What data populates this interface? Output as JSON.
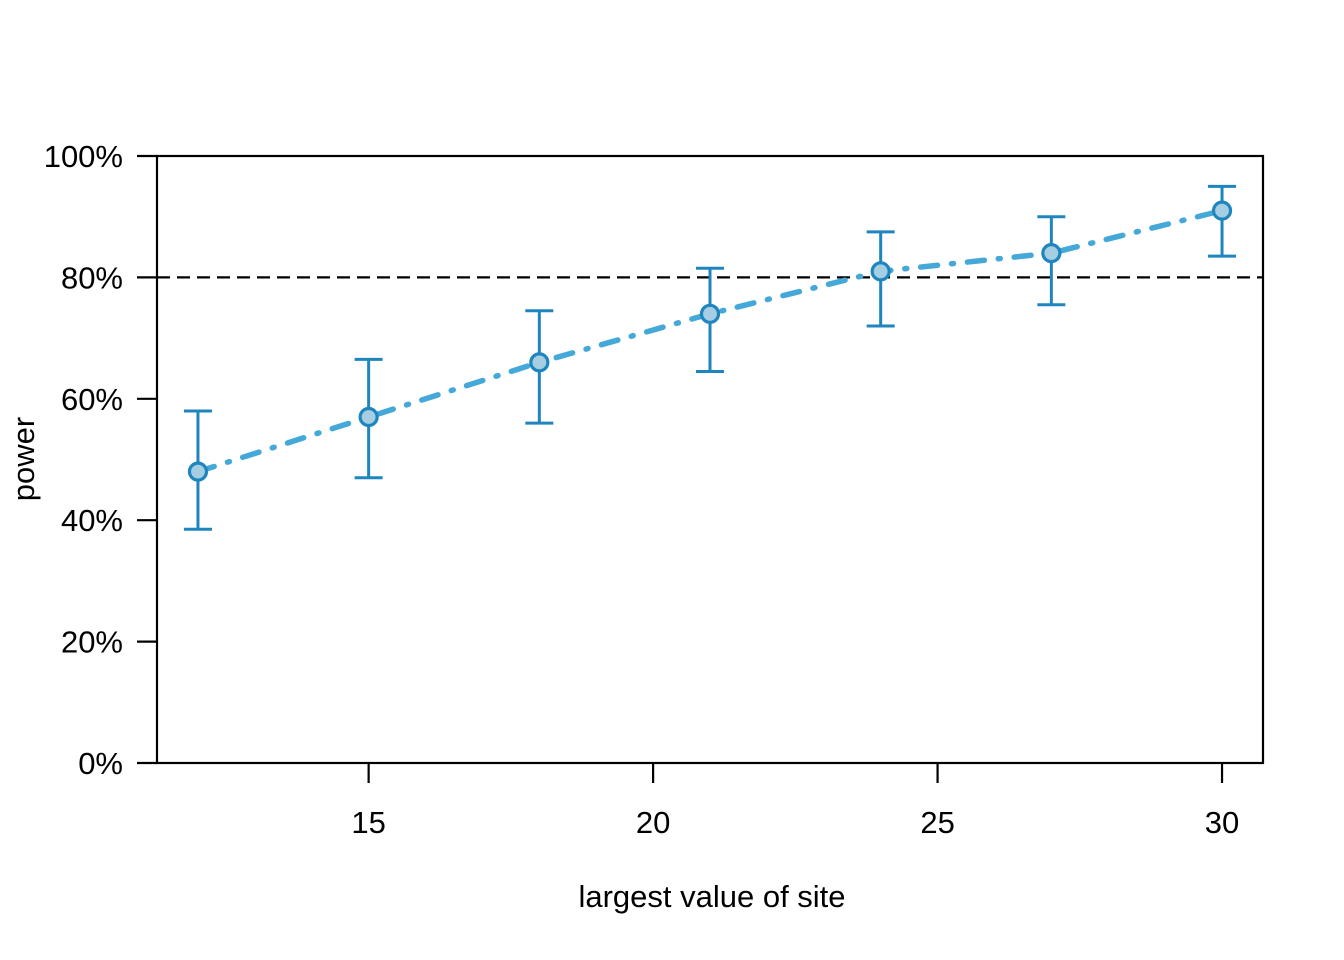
{
  "chart_data": {
    "type": "line",
    "title": "",
    "xlabel": "largest value of site",
    "ylabel": "power",
    "x": [
      12,
      15,
      18,
      21,
      24,
      27,
      30
    ],
    "series": [
      {
        "name": "power",
        "values": [
          48,
          57,
          66,
          74,
          81,
          84,
          91
        ],
        "ci_lower": [
          38.5,
          47,
          56,
          64.5,
          72,
          75.5,
          83.5
        ],
        "ci_upper": [
          58,
          66.5,
          74.5,
          81.5,
          87.5,
          90,
          95
        ]
      }
    ],
    "reference_line_y": 80,
    "x_ticks": [
      15,
      20,
      25,
      30
    ],
    "x_tick_labels": [
      "15",
      "20",
      "25",
      "30"
    ],
    "y_ticks": [
      0,
      20,
      40,
      60,
      80,
      100
    ],
    "y_tick_labels": [
      "0%",
      "20%",
      "40%",
      "60%",
      "80%",
      "100%"
    ],
    "xlim": [
      11.28,
      30.72
    ],
    "ylim": [
      0,
      100
    ],
    "grid": false,
    "legend": "none",
    "line_style": "dash-dot",
    "reference_line_style": "dashed",
    "colors": {
      "line": "#44a8d8",
      "marker_fill": "#a6cee3",
      "marker_stroke": "#1f85bf",
      "error_bar": "#1f85bf",
      "reference_line": "#000000",
      "axis": "#000000",
      "text": "#000000",
      "background": "#ffffff"
    }
  }
}
